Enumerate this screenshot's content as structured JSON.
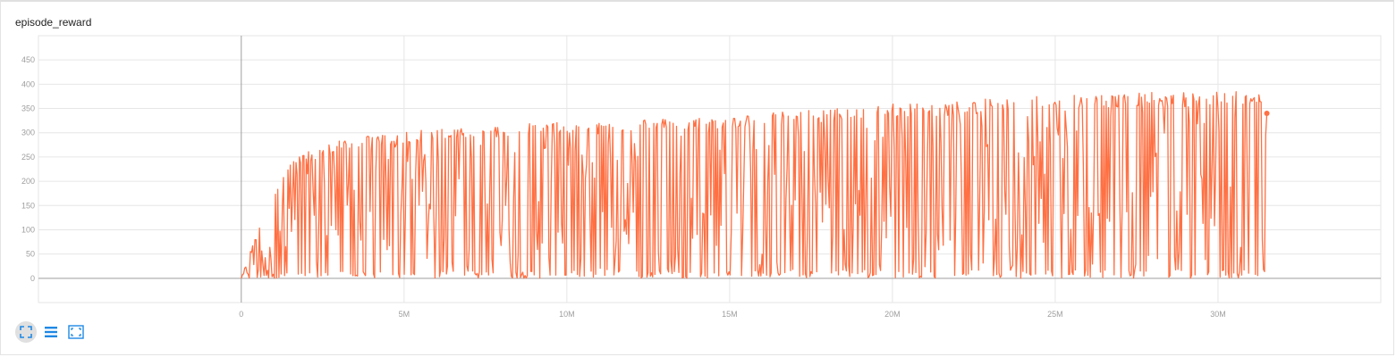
{
  "card": {
    "title": "episode_reward"
  },
  "toolbar": {
    "buttons": [
      {
        "name": "expand-chart-button",
        "icon": "fullscreen-icon"
      },
      {
        "name": "toggle-y-log-button",
        "icon": "list-icon"
      },
      {
        "name": "fit-domain-button",
        "icon": "fit-domain-icon"
      }
    ]
  },
  "colors": {
    "series": "#ff7043",
    "grid": "#e6e6e6",
    "axis": "#9e9e9e",
    "zero_line": "#9e9e9e",
    "icon": "#1e88e5"
  },
  "chart_data": {
    "type": "line",
    "title": "episode_reward",
    "xlim": [
      -6230000,
      35000000
    ],
    "ylim": [
      -50,
      500
    ],
    "x_ticks": [
      0,
      5000000,
      10000000,
      15000000,
      20000000,
      25000000,
      30000000
    ],
    "x_tick_labels": [
      "0",
      "5M",
      "10M",
      "15M",
      "20M",
      "25M",
      "30M"
    ],
    "y_ticks": [
      0,
      50,
      100,
      150,
      200,
      250,
      300,
      350,
      400,
      450
    ],
    "y_tick_labels": [
      "0",
      "50",
      "100",
      "150",
      "200",
      "250",
      "300",
      "350",
      "400",
      "450"
    ],
    "grid": true,
    "series": [
      {
        "x_start": 0,
        "x_end": 31500000,
        "last": 340,
        "envelope": [
          [
            0,
            0
          ],
          [
            500000,
            100
          ],
          [
            1000000,
            180
          ],
          [
            1500000,
            240
          ],
          [
            2000000,
            260
          ],
          [
            3000000,
            285
          ],
          [
            4000000,
            295
          ],
          [
            5000000,
            300
          ],
          [
            6000000,
            310
          ],
          [
            7000000,
            315
          ],
          [
            8000000,
            315
          ],
          [
            9000000,
            320
          ],
          [
            10000000,
            322
          ],
          [
            11000000,
            325
          ],
          [
            12000000,
            330
          ],
          [
            13000000,
            330
          ],
          [
            14000000,
            332
          ],
          [
            15000000,
            335
          ],
          [
            16000000,
            340
          ],
          [
            17000000,
            345
          ],
          [
            18000000,
            350
          ],
          [
            19000000,
            355
          ],
          [
            20000000,
            360
          ],
          [
            21000000,
            362
          ],
          [
            22000000,
            365
          ],
          [
            23000000,
            370
          ],
          [
            24000000,
            375
          ],
          [
            25000000,
            380
          ],
          [
            26000000,
            382
          ],
          [
            27000000,
            382
          ],
          [
            28000000,
            383
          ],
          [
            29000000,
            384
          ],
          [
            30000000,
            385
          ],
          [
            31500000,
            385
          ]
        ]
      }
    ]
  }
}
